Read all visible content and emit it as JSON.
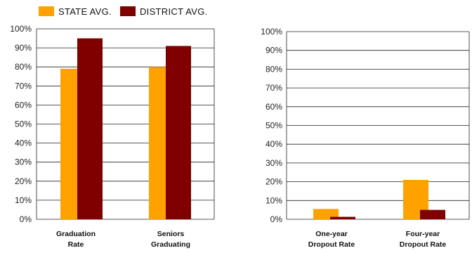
{
  "legend": [
    {
      "label": "STATE AVG.",
      "color": "#FFA200"
    },
    {
      "label": "DISTRICT AVG.",
      "color": "#800000"
    }
  ],
  "chart_data": [
    {
      "type": "bar",
      "categories": [
        [
          "Graduation",
          "Rate"
        ],
        [
          "Seniors",
          "Graduating"
        ]
      ],
      "series": [
        {
          "name": "STATE AVG.",
          "color": "#FFA200",
          "values": [
            79,
            80
          ]
        },
        {
          "name": "DISTRICT AVG.",
          "color": "#800000",
          "values": [
            95,
            91
          ]
        }
      ],
      "ylim": [
        0,
        100
      ],
      "yticks": [
        "0%",
        "10%",
        "20%",
        "30%",
        "40%",
        "50%",
        "60%",
        "70%",
        "80%",
        "90%",
        "100%"
      ],
      "grid": true
    },
    {
      "type": "bar",
      "categories": [
        [
          "One-year",
          "Dropout Rate"
        ],
        [
          "Four-year",
          "Dropout Rate"
        ]
      ],
      "series": [
        {
          "name": "STATE AVG.",
          "color": "#FFA200",
          "values": [
            5.5,
            21
          ]
        },
        {
          "name": "DISTRICT AVG.",
          "color": "#800000",
          "values": [
            1.3,
            5
          ]
        }
      ],
      "ylim": [
        0,
        100
      ],
      "yticks": [
        "0%",
        "10%",
        "20%",
        "30%",
        "40%",
        "50%",
        "60%",
        "70%",
        "80%",
        "90%",
        "100%"
      ],
      "grid": true
    }
  ]
}
